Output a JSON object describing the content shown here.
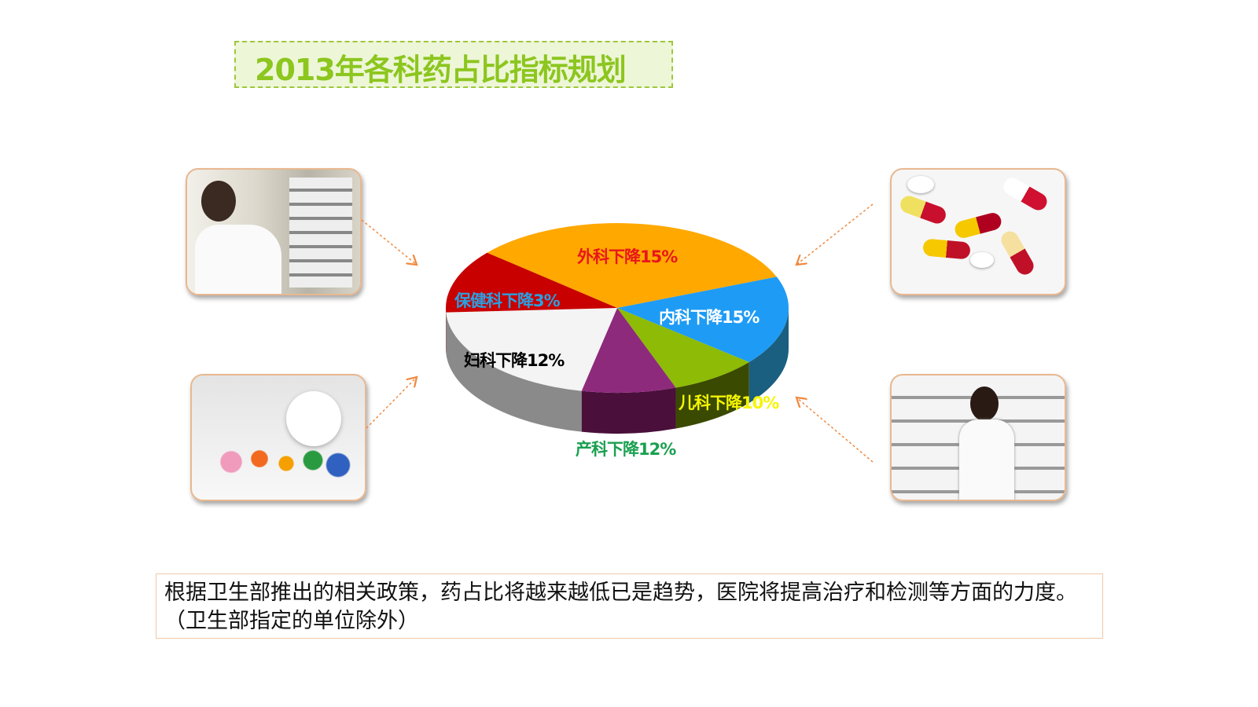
{
  "title": "2013年各科药占比指标规划",
  "chart_data": {
    "type": "pie",
    "style": "3d",
    "title": "",
    "slices": [
      {
        "label": "外科下降15%",
        "category": "外科",
        "decline_percent": 15,
        "color": "#FFA800",
        "label_color": "#E8161A"
      },
      {
        "label": "内科下降15%",
        "category": "内科",
        "decline_percent": 15,
        "color": "#1E9BF5",
        "label_color": "#FFFFFF"
      },
      {
        "label": "儿科下降10%",
        "category": "儿科",
        "decline_percent": 10,
        "color": "#8DBB06",
        "label_color": "#F5F500"
      },
      {
        "label": "产科下降12%",
        "category": "产科",
        "decline_percent": 12,
        "color": "#8E2A7C",
        "label_color": "#1AA050"
      },
      {
        "label": "妇科下降12%",
        "category": "妇科",
        "decline_percent": 12,
        "color": "#F4F4F4",
        "label_color": "#000000"
      },
      {
        "label": "保健科下降3%",
        "category": "保健科",
        "decline_percent": 3,
        "color": "#C80000",
        "label_color": "#2AA0E0"
      }
    ]
  },
  "photos": [
    {
      "icon": "pharmacist-woman-photo"
    },
    {
      "icon": "capsules-photo"
    },
    {
      "icon": "pills-bottle-photo"
    },
    {
      "icon": "pharmacist-shelves-photo"
    }
  ],
  "note": "根据卫生部推出的相关政策，药占比将越来越低已是趋势，医院将提高治疗和检测等方面的力度。（卫生部指定的单位除外）"
}
